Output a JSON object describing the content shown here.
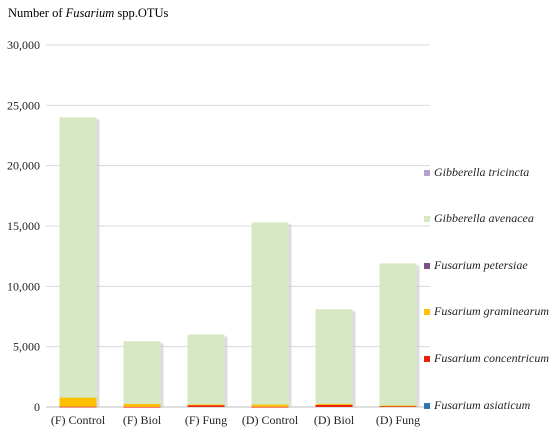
{
  "chart_data": {
    "type": "bar",
    "stacked": true,
    "ylabel_parts": [
      {
        "text": "Number of ",
        "italic": false
      },
      {
        "text": "Fusarium",
        "italic": true
      },
      {
        "text": " spp.OTUs",
        "italic": false
      }
    ],
    "ylim": [
      0,
      30000
    ],
    "yticks": [
      0,
      5000,
      10000,
      15000,
      20000,
      25000,
      30000
    ],
    "ytick_labels": [
      "0",
      "5,000",
      "10,000",
      "15,000",
      "20,000",
      "25,000",
      "30,000"
    ],
    "grid": true,
    "legend_position": "right",
    "categories": [
      "(F) Control",
      "(F) Biol",
      "(F) Fung",
      "(D) Control",
      "(D) Biol",
      "(D) Fung"
    ],
    "series": [
      {
        "name": "Fusarium asiaticum",
        "color": "#2e75b6",
        "values": [
          0,
          0,
          0,
          0,
          0,
          0
        ]
      },
      {
        "name": "Fusarium concentricum",
        "color": "#e8220c",
        "values": [
          30,
          20,
          150,
          20,
          180,
          80
        ]
      },
      {
        "name": "Fusarium graminearum",
        "color": "#ffc000",
        "values": [
          750,
          230,
          60,
          180,
          80,
          40
        ]
      },
      {
        "name": "Fusarium petersiae",
        "color": "#7a4f8a",
        "values": [
          0,
          0,
          0,
          0,
          0,
          0
        ]
      },
      {
        "name": "Gibberella avenacea",
        "color": "#d6e8c4",
        "values": [
          23220,
          5200,
          5800,
          15100,
          7840,
          11780
        ]
      },
      {
        "name": "Gibberella tricincta",
        "color": "#b9a0cc",
        "values": [
          0,
          0,
          0,
          0,
          0,
          0
        ]
      }
    ]
  }
}
